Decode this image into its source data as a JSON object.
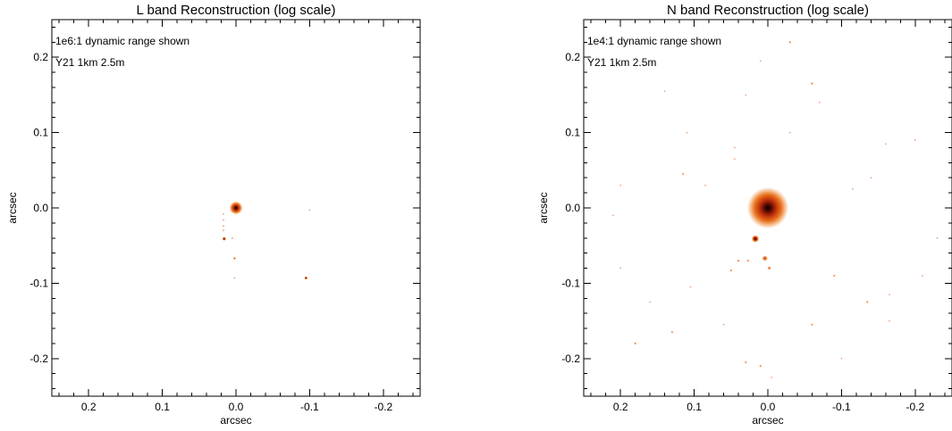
{
  "chart_data": [
    {
      "type": "heatmap",
      "title": "L band Reconstruction (log scale)",
      "xlabel": "arcsec",
      "ylabel": "arcsec",
      "xlim": [
        0.25,
        -0.25
      ],
      "ylim": [
        -0.25,
        0.25
      ],
      "x_ticks": [
        0.2,
        0.1,
        0.0,
        -0.1,
        -0.2
      ],
      "x_tick_labels": [
        "0.2",
        "0.1",
        "0.0",
        "-0.1",
        "-0.2"
      ],
      "y_ticks": [
        0.2,
        0.1,
        0.0,
        -0.1,
        -0.2
      ],
      "y_tick_labels": [
        "0.2",
        "0.1",
        "0.0",
        "-0.1",
        "-0.2"
      ],
      "annotations": [
        "1e6:1 dynamic range shown",
        "Y21 1km 2.5m"
      ],
      "colormap": [
        "#ffffff",
        "#f8c49a",
        "#e8731e",
        "#c0300a",
        "#5a0a00",
        "#000000"
      ],
      "sources": [
        {
          "x": 0.0,
          "y": 0.0,
          "r": 0.009,
          "intensity": 1.0
        },
        {
          "x": 0.016,
          "y": -0.041,
          "r": 0.0025,
          "intensity": 0.9
        },
        {
          "x": 0.002,
          "y": -0.067,
          "r": 0.0018,
          "intensity": 0.7
        },
        {
          "x": -0.095,
          "y": -0.093,
          "r": 0.0022,
          "intensity": 0.9
        },
        {
          "x": 0.017,
          "y": -0.008,
          "r": 0.0008,
          "intensity": 0.3
        },
        {
          "x": 0.017,
          "y": -0.016,
          "r": 0.0008,
          "intensity": 0.3
        },
        {
          "x": 0.017,
          "y": -0.024,
          "r": 0.0008,
          "intensity": 0.3
        },
        {
          "x": 0.017,
          "y": -0.03,
          "r": 0.0008,
          "intensity": 0.3
        },
        {
          "x": 0.005,
          "y": -0.04,
          "r": 0.0008,
          "intensity": 0.3
        },
        {
          "x": 0.002,
          "y": -0.093,
          "r": 0.0008,
          "intensity": 0.25
        },
        {
          "x": -0.1,
          "y": -0.003,
          "r": 0.0008,
          "intensity": 0.25
        }
      ]
    },
    {
      "type": "heatmap",
      "title": "N band Reconstruction (log scale)",
      "xlabel": "arcsec",
      "ylabel": "arcsec",
      "xlim": [
        0.25,
        -0.25
      ],
      "ylim": [
        -0.25,
        0.25
      ],
      "x_ticks": [
        0.2,
        0.1,
        0.0,
        -0.1,
        -0.2
      ],
      "x_tick_labels": [
        "0.2",
        "0.1",
        "0.0",
        "-0.1",
        "-0.2"
      ],
      "y_ticks": [
        0.2,
        0.1,
        0.0,
        -0.1,
        -0.2
      ],
      "y_tick_labels": [
        "0.2",
        "0.1",
        "0.0",
        "-0.1",
        "-0.2"
      ],
      "annotations": [
        "1e4:1 dynamic range shown",
        "Y21 1km 2.5m"
      ],
      "colormap": [
        "#ffffff",
        "#f8c49a",
        "#e8731e",
        "#c0300a",
        "#5a0a00",
        "#000000"
      ],
      "sources": [
        {
          "x": 0.0,
          "y": 0.0,
          "r": 0.028,
          "intensity": 1.0
        },
        {
          "x": 0.017,
          "y": -0.041,
          "r": 0.005,
          "intensity": 0.85
        },
        {
          "x": 0.004,
          "y": -0.067,
          "r": 0.004,
          "intensity": 0.55
        },
        {
          "x": -0.002,
          "y": -0.08,
          "r": 0.0025,
          "intensity": 0.45
        },
        {
          "x": 0.04,
          "y": -0.07,
          "r": 0.002,
          "intensity": 0.35
        },
        {
          "x": 0.05,
          "y": -0.083,
          "r": 0.002,
          "intensity": 0.3
        },
        {
          "x": 0.027,
          "y": -0.07,
          "r": 0.002,
          "intensity": 0.3
        },
        {
          "x": -0.03,
          "y": 0.22,
          "r": 0.002,
          "intensity": 0.3
        },
        {
          "x": 0.01,
          "y": 0.195,
          "r": 0.0015,
          "intensity": 0.25
        },
        {
          "x": -0.06,
          "y": 0.165,
          "r": 0.002,
          "intensity": 0.35
        },
        {
          "x": 0.14,
          "y": 0.155,
          "r": 0.0015,
          "intensity": 0.25
        },
        {
          "x": 0.115,
          "y": 0.045,
          "r": 0.0018,
          "intensity": 0.3
        },
        {
          "x": 0.045,
          "y": 0.065,
          "r": 0.0015,
          "intensity": 0.25
        },
        {
          "x": 0.045,
          "y": 0.08,
          "r": 0.0015,
          "intensity": 0.25
        },
        {
          "x": 0.11,
          "y": 0.1,
          "r": 0.0015,
          "intensity": 0.25
        },
        {
          "x": -0.16,
          "y": 0.085,
          "r": 0.0015,
          "intensity": 0.25
        },
        {
          "x": -0.2,
          "y": 0.09,
          "r": 0.0015,
          "intensity": 0.25
        },
        {
          "x": -0.14,
          "y": 0.04,
          "r": 0.0015,
          "intensity": 0.25
        },
        {
          "x": -0.115,
          "y": 0.025,
          "r": 0.0015,
          "intensity": 0.25
        },
        {
          "x": 0.2,
          "y": -0.08,
          "r": 0.0015,
          "intensity": 0.25
        },
        {
          "x": 0.105,
          "y": -0.105,
          "r": 0.0015,
          "intensity": 0.25
        },
        {
          "x": 0.13,
          "y": -0.165,
          "r": 0.002,
          "intensity": 0.3
        },
        {
          "x": 0.18,
          "y": -0.18,
          "r": 0.002,
          "intensity": 0.3
        },
        {
          "x": 0.03,
          "y": -0.205,
          "r": 0.002,
          "intensity": 0.3
        },
        {
          "x": 0.01,
          "y": -0.21,
          "r": 0.002,
          "intensity": 0.3
        },
        {
          "x": -0.005,
          "y": -0.225,
          "r": 0.0015,
          "intensity": 0.25
        },
        {
          "x": -0.06,
          "y": -0.155,
          "r": 0.0018,
          "intensity": 0.3
        },
        {
          "x": -0.09,
          "y": -0.09,
          "r": 0.0018,
          "intensity": 0.3
        },
        {
          "x": -0.135,
          "y": -0.125,
          "r": 0.0018,
          "intensity": 0.3
        },
        {
          "x": -0.165,
          "y": -0.115,
          "r": 0.0015,
          "intensity": 0.25
        },
        {
          "x": -0.21,
          "y": -0.09,
          "r": 0.0015,
          "intensity": 0.25
        },
        {
          "x": 0.21,
          "y": -0.01,
          "r": 0.0015,
          "intensity": 0.25
        },
        {
          "x": -0.23,
          "y": -0.04,
          "r": 0.0015,
          "intensity": 0.25
        },
        {
          "x": 0.085,
          "y": 0.03,
          "r": 0.0015,
          "intensity": 0.25
        },
        {
          "x": 0.2,
          "y": 0.03,
          "r": 0.0015,
          "intensity": 0.25
        },
        {
          "x": -0.03,
          "y": 0.1,
          "r": 0.0015,
          "intensity": 0.25
        },
        {
          "x": 0.03,
          "y": 0.15,
          "r": 0.0015,
          "intensity": 0.25
        },
        {
          "x": -0.165,
          "y": -0.15,
          "r": 0.0015,
          "intensity": 0.25
        },
        {
          "x": -0.1,
          "y": -0.2,
          "r": 0.0015,
          "intensity": 0.25
        },
        {
          "x": 0.16,
          "y": -0.125,
          "r": 0.0015,
          "intensity": 0.25
        },
        {
          "x": -0.07,
          "y": 0.14,
          "r": 0.0015,
          "intensity": 0.25
        },
        {
          "x": 0.06,
          "y": -0.155,
          "r": 0.0015,
          "intensity": 0.25
        }
      ]
    }
  ]
}
